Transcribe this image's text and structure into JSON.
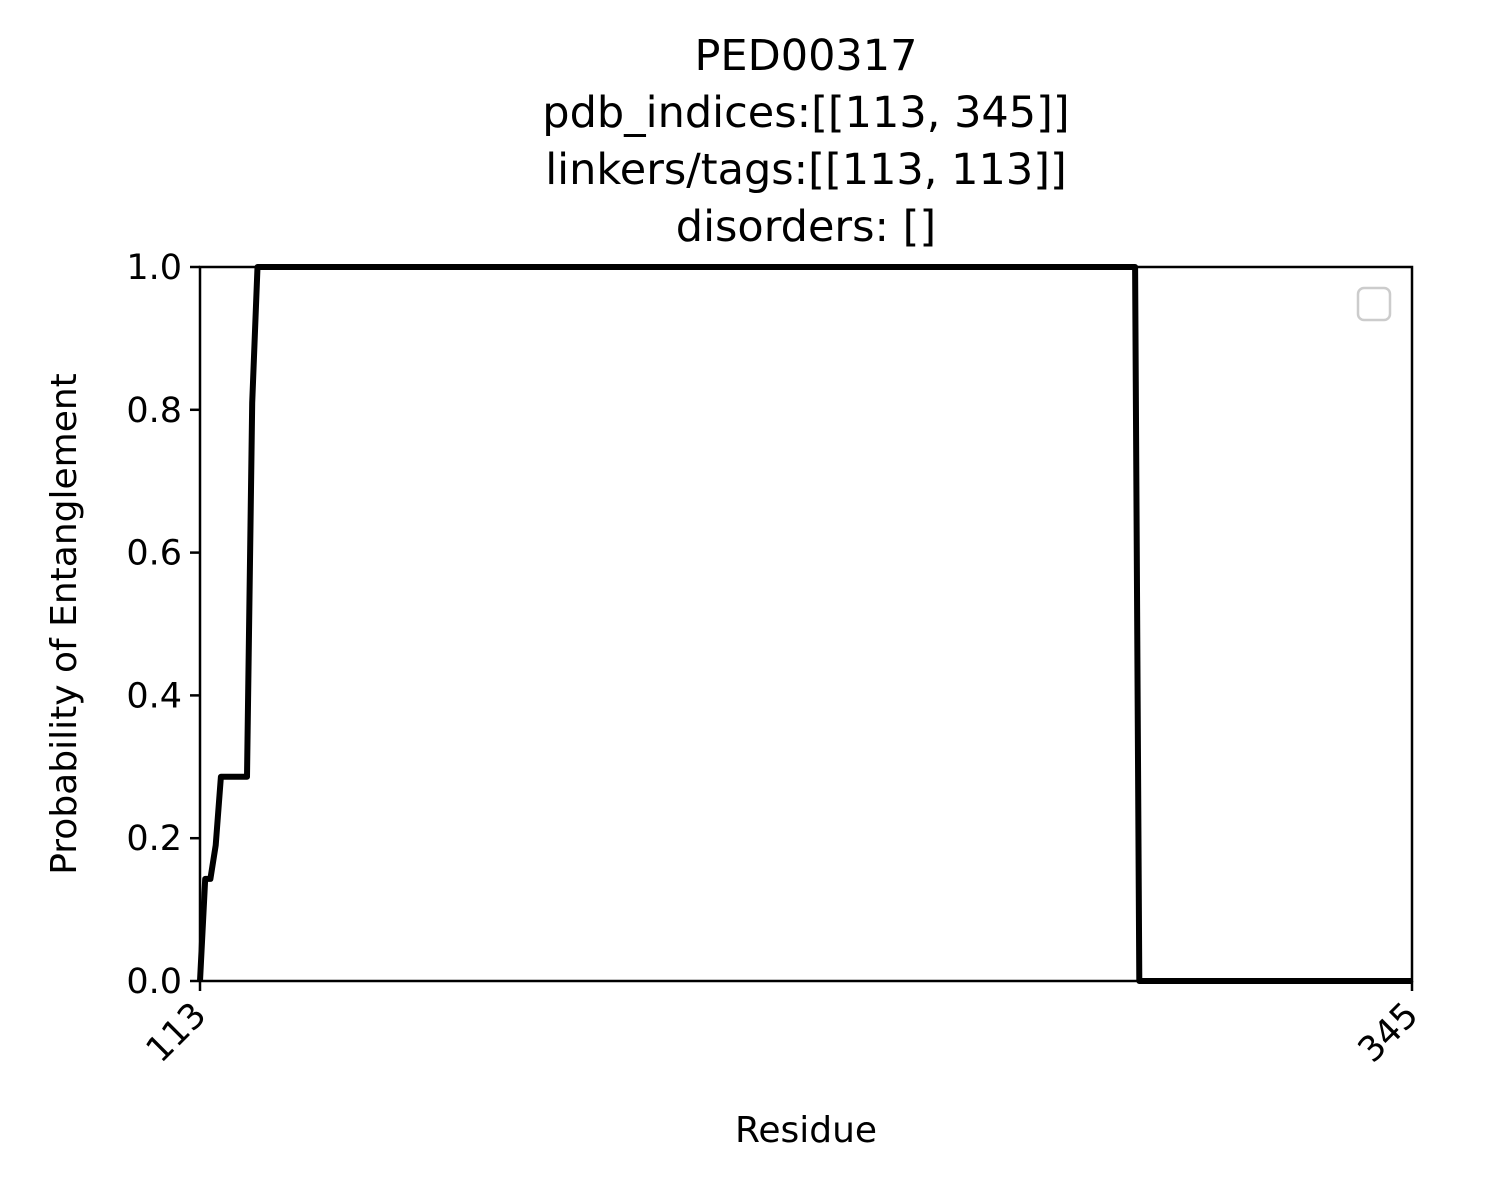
{
  "chart_data": {
    "type": "line",
    "title_lines": [
      "PED00317",
      "pdb_indices:[[113, 345]]",
      "linkers/tags:[[113, 113]]",
      "disorders: []"
    ],
    "xlabel": "Residue",
    "ylabel": "Probability of Entanglement",
    "xlim": [
      113,
      345
    ],
    "ylim": [
      0.0,
      1.0
    ],
    "x_ticks": [
      113,
      345
    ],
    "x_tick_labels": [
      "113",
      "345"
    ],
    "y_ticks": [
      0.0,
      0.2,
      0.4,
      0.6,
      0.7999999999999999,
      1.0
    ],
    "y_tick_labels": [
      "0.0",
      "0.2",
      "0.4",
      "0.6",
      "0.8",
      "1.0"
    ],
    "grid": false,
    "legend": {
      "placement": "top-right",
      "entries": []
    },
    "series": [
      {
        "color": "#000000",
        "x": [
          113,
          114,
          115,
          116,
          117,
          122,
          123,
          124,
          125,
          292,
          292.8,
          345
        ],
        "y": [
          0.0,
          0.143,
          0.143,
          0.19,
          0.286,
          0.286,
          0.81,
          1.0,
          1.0,
          1.0,
          0.0,
          0.0
        ]
      }
    ]
  }
}
